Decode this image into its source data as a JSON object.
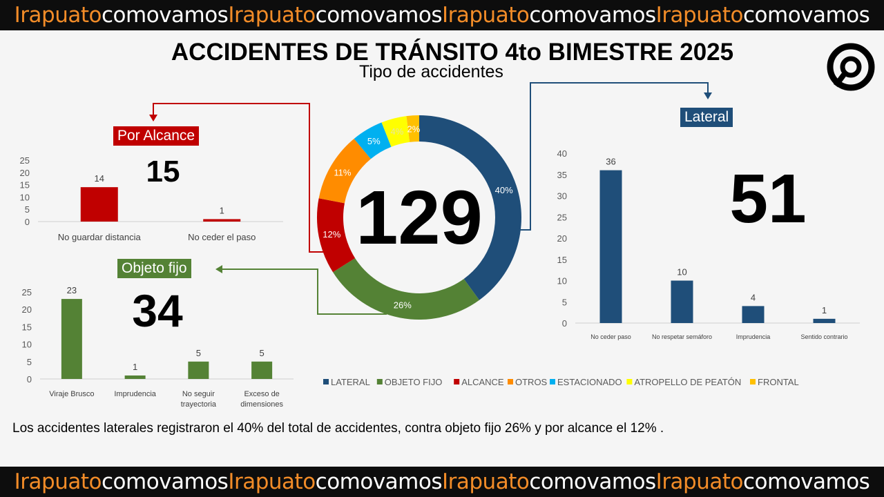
{
  "banner": {
    "part1": "Irapuato",
    "part2": "comovamos"
  },
  "title": "ACCIDENTES DE TRÁNSITO 4to BIMESTRE 2025",
  "subtitle": "Tipo de accidentes",
  "footer_text": "Los accidentes laterales registraron el 40% del total de accidentes, contra objeto fijo 26% y por alcance el 12% .",
  "chart_data": [
    {
      "type": "pie",
      "variant": "donut",
      "title": "Tipo de accidentes",
      "total_label": "129",
      "categories": [
        "LATERAL",
        "OBJETO FIJO",
        "ALCANCE",
        "OTROS",
        "ESTACIONADO",
        "ATROPELLO DE PEATÓN",
        "FRONTAL"
      ],
      "values": [
        40,
        26,
        12,
        11,
        5,
        4,
        2
      ],
      "labels": [
        "40%",
        "26%",
        "12%",
        "11%",
        "5%",
        "4%",
        "2%"
      ],
      "colors": [
        "#1f4e79",
        "#548235",
        "#c00000",
        "#ff8c00",
        "#00b0f0",
        "#ffff00",
        "#ffc000"
      ],
      "legend": "bottom"
    },
    {
      "type": "bar",
      "title": "Por Alcance",
      "total": "15",
      "color": "#c00000",
      "categories": [
        "No guardar distancia",
        "No ceder el paso"
      ],
      "values": [
        14,
        1
      ],
      "ylim": [
        0,
        25
      ],
      "yticks": [
        0,
        5,
        10,
        15,
        20,
        25
      ]
    },
    {
      "type": "bar",
      "title": "Objeto fijo",
      "total": "34",
      "color": "#548235",
      "categories": [
        [
          "Viraje Brusco"
        ],
        [
          "Imprudencia"
        ],
        [
          "No seguir",
          "trayectoria"
        ],
        [
          "Exceso de",
          "dimensiones"
        ]
      ],
      "values": [
        23,
        1,
        5,
        5
      ],
      "ylim": [
        0,
        25
      ],
      "yticks": [
        0,
        5,
        10,
        15,
        20,
        25
      ]
    },
    {
      "type": "bar",
      "title": "Lateral",
      "total": "51",
      "color": "#1f4e79",
      "categories": [
        "No ceder paso",
        "No respetar semáforo",
        "Imprudencia",
        "Sentido contrario"
      ],
      "values": [
        36,
        10,
        4,
        1
      ],
      "ylim": [
        0,
        40
      ],
      "yticks": [
        0,
        5,
        10,
        15,
        20,
        25,
        30,
        35,
        40
      ]
    }
  ]
}
